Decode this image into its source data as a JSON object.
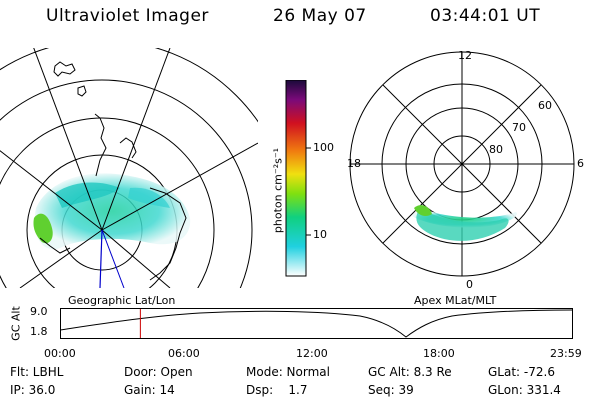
{
  "header": {
    "title": "Ultraviolet Imager",
    "date": "26 May 07",
    "time": "03:44:01 UT"
  },
  "left_panel": {
    "label": "Geographic Lat/Lon"
  },
  "right_panel": {
    "label": "Apex MLat/MLT",
    "mlt_labels": [
      "12",
      "18",
      "6",
      "0"
    ],
    "lat_labels": [
      "60",
      "70",
      "80"
    ]
  },
  "colorbar": {
    "unit_label": "photon cm⁻²s⁻¹",
    "ticks": [
      "100",
      "10"
    ],
    "scale": "log",
    "colors": [
      "#1a0a3a",
      "#7a0a7a",
      "#d01020",
      "#f07a10",
      "#f0e010",
      "#80e010",
      "#10d080",
      "#20d0e0",
      "#ffffff"
    ]
  },
  "altitude_plot": {
    "ylabel": "GC Alt",
    "ytick_top": "9.0",
    "ytick_bottom": "1.8",
    "xticks": [
      "00:00",
      "06:00",
      "12:00",
      "18:00",
      "23:59"
    ],
    "current_time_fraction": 0.156,
    "marker_color": "#cc0000"
  },
  "status": {
    "flt": "Flt: LBHL",
    "door": "Door: Open",
    "mode": "Mode: Normal",
    "gc_alt": "GC Alt: 8.3 Re",
    "glat": "GLat: -72.6",
    "ip": "IP: 36.0",
    "gain": "Gain: 14",
    "dsp": "Dsp:    1.7",
    "seq": "Seq: 39",
    "glon": "GLon: 331.4"
  }
}
